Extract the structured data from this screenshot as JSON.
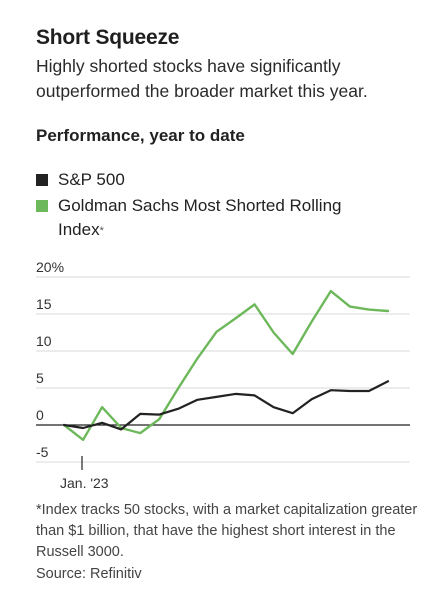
{
  "title": "Short Squeeze",
  "subtitle": "Highly shorted stocks have significantly outperformed the broader market this year.",
  "section_label": "Performance, year to date",
  "legend": [
    {
      "label": "S&P 500",
      "color": "#222222",
      "suffix": ""
    },
    {
      "label": "Goldman Sachs Most Shorted Rolling Index",
      "color": "#6db85a",
      "suffix": "*"
    }
  ],
  "footnote": "*Index tracks 50 stocks, with a market capitalization greater than $1 billion, that have the highest short interest in the Russell 3000.",
  "source": "Source: Refinitiv",
  "chart_data": {
    "type": "line",
    "ylim": [
      -5,
      20
    ],
    "yticks": [
      20,
      15,
      10,
      5,
      0,
      -5
    ],
    "ytick_labels": [
      "20%",
      "15",
      "10",
      "5",
      "0",
      "-5"
    ],
    "xtick_label": "Jan. '23",
    "grid": true,
    "series": [
      {
        "name": "S&P 500",
        "color": "#222222",
        "values": [
          0,
          -0.4,
          0.3,
          -0.6,
          1.5,
          1.4,
          2.2,
          3.4,
          3.8,
          4.2,
          4.0,
          2.4,
          1.6,
          3.5,
          4.7,
          4.6,
          4.6,
          5.9
        ]
      },
      {
        "name": "Goldman Sachs Most Shorted Rolling Index",
        "color": "#6db85a",
        "values": [
          0,
          -2.0,
          2.4,
          -0.4,
          -1.1,
          0.8,
          5.0,
          9.0,
          12.6,
          14.4,
          16.3,
          12.5,
          9.6,
          14.0,
          18.1,
          16.0,
          15.6,
          15.4
        ]
      }
    ]
  }
}
